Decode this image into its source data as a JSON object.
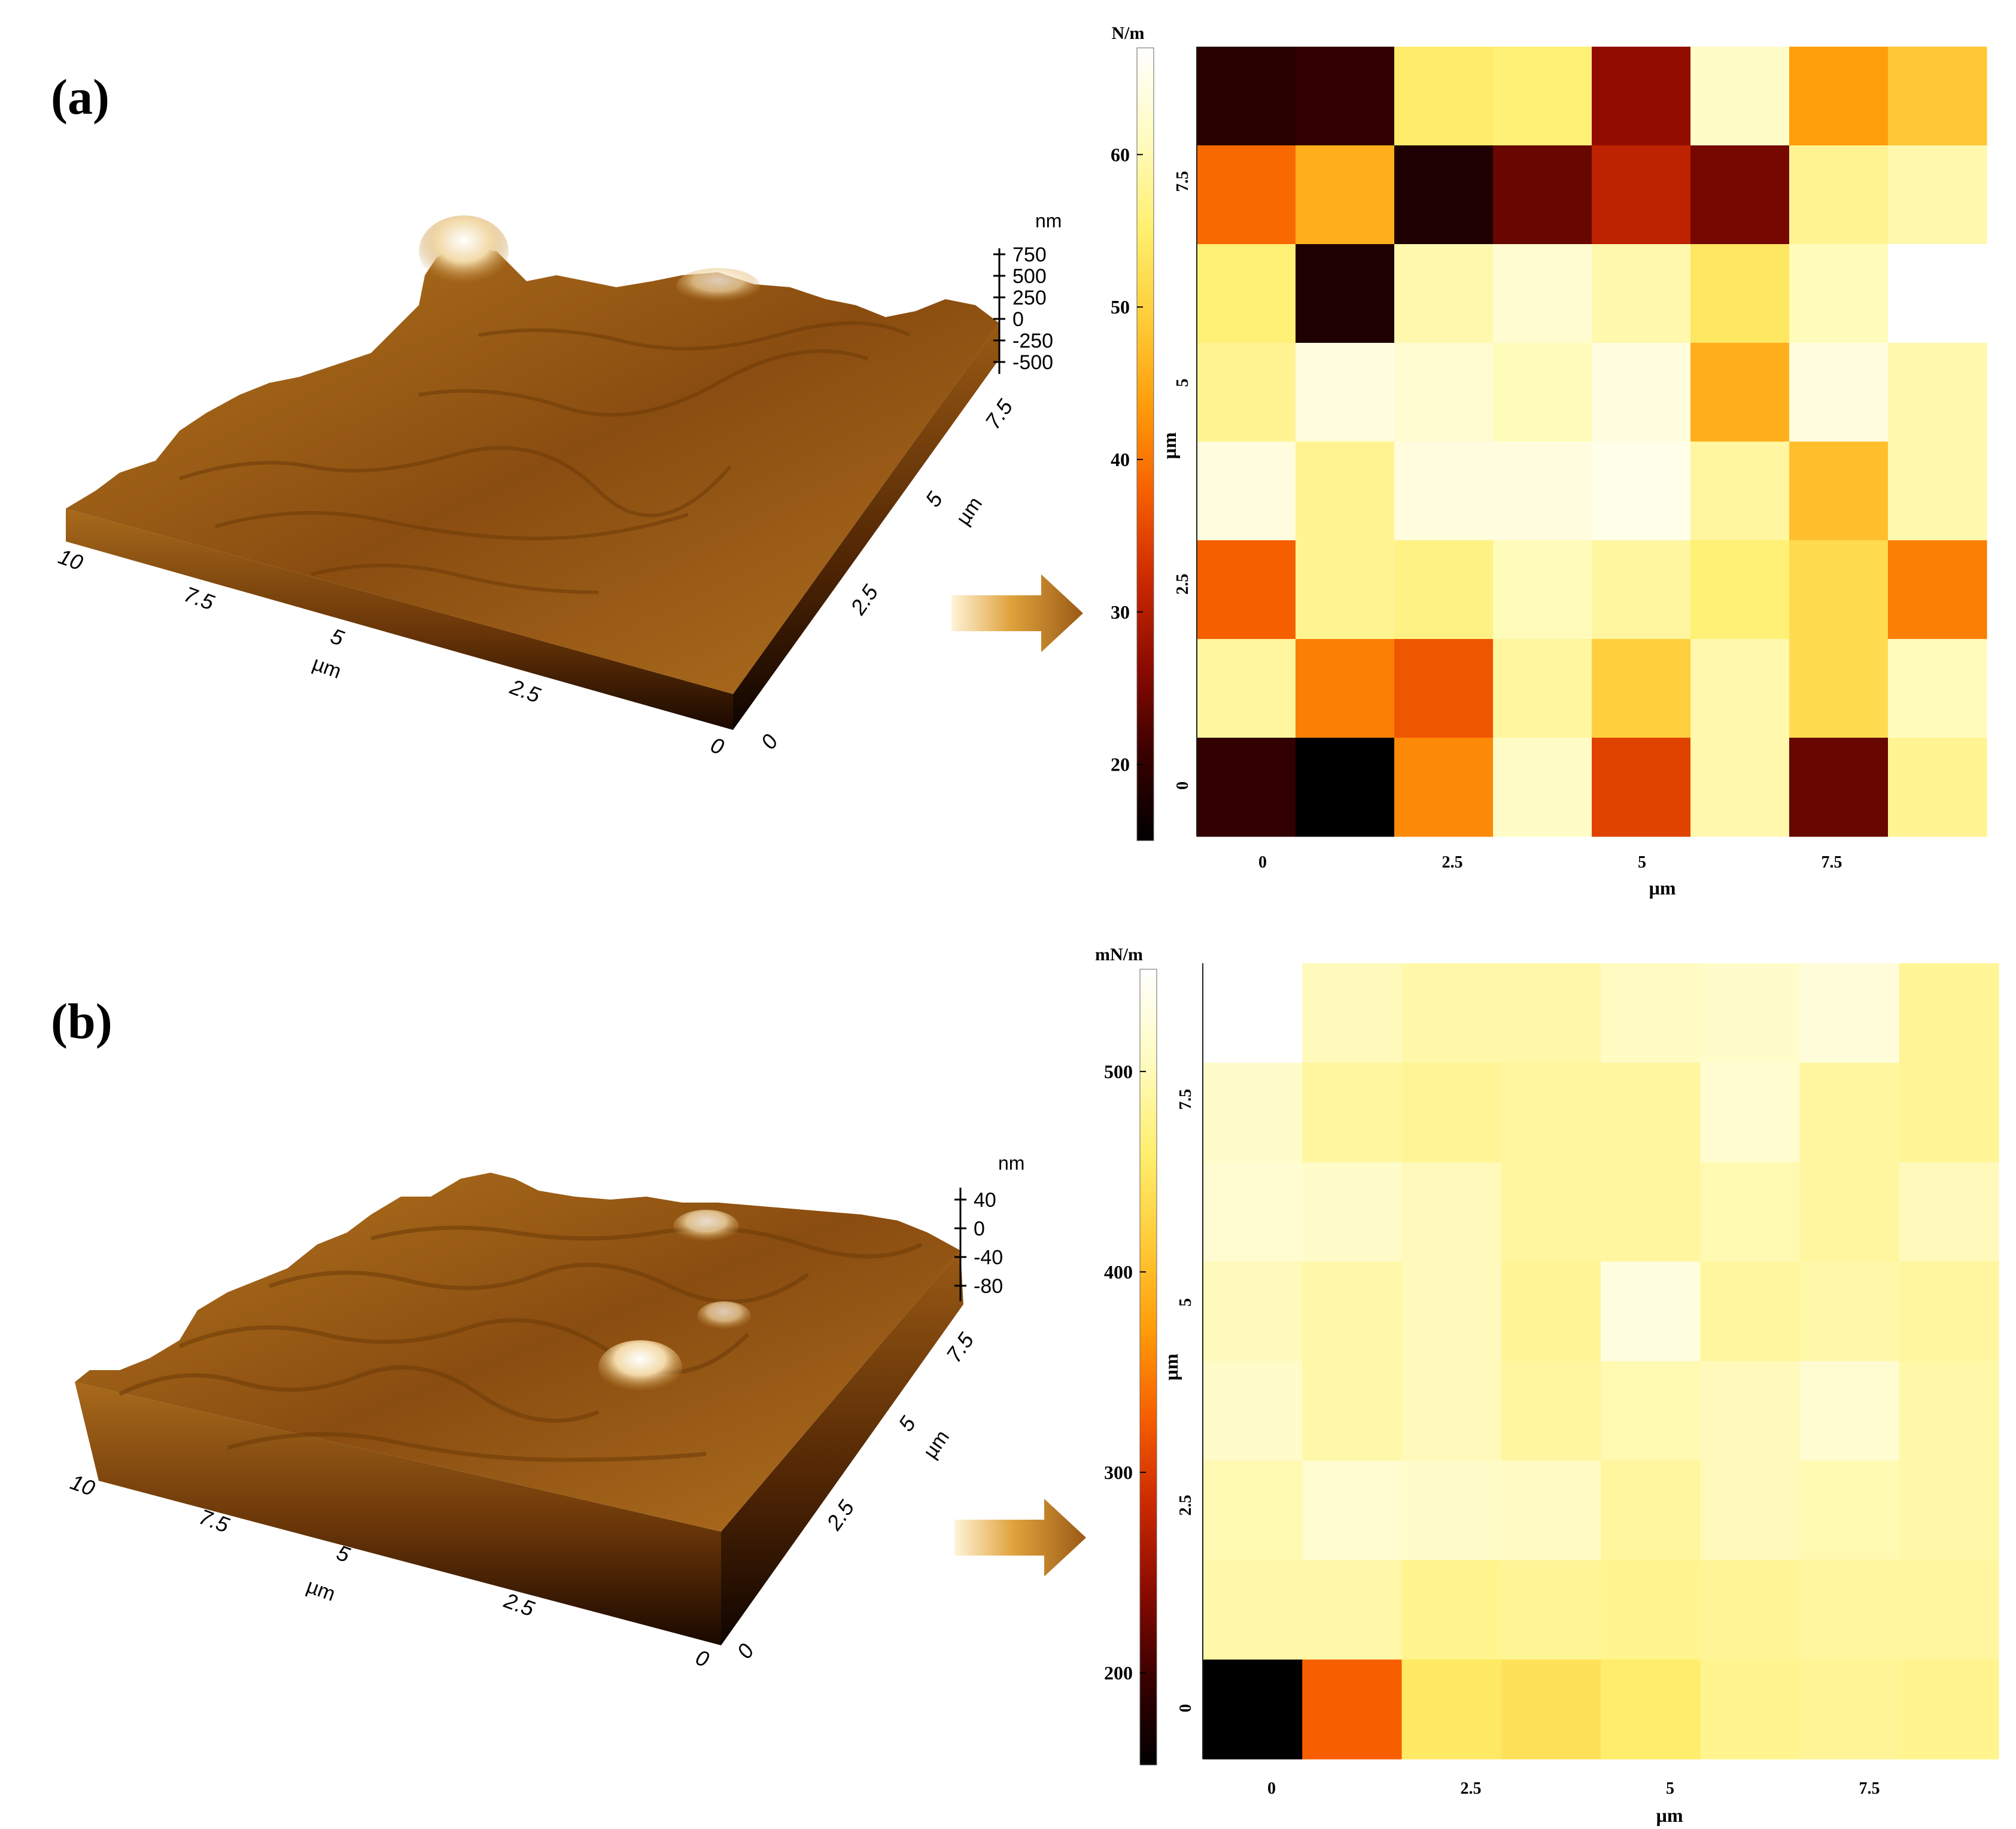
{
  "panels": [
    {
      "label": "(a)",
      "topo": {
        "z_unit": "nm",
        "z_ticks": [
          "750",
          "500",
          "250",
          "0",
          "-250",
          "-500"
        ],
        "axis1_ticks": [
          "10",
          "7.5",
          "5",
          "2.5",
          "0"
        ],
        "axis1_label": "µm",
        "axis2_ticks": [
          "0",
          "2.5",
          "5",
          "7.5"
        ],
        "axis2_label": "µm",
        "peak_level": 0.8
      },
      "chart_data": {
        "type": "heatmap",
        "colorbar_unit": "N/m",
        "colorbar_ticks": [
          20,
          30,
          40,
          50,
          60
        ],
        "colorbar_range": [
          15,
          67
        ],
        "colormap": [
          "#000000",
          "#3a0000",
          "#8c0b00",
          "#cc2a00",
          "#f76000",
          "#ff9d0a",
          "#ffcd3a",
          "#ffef6e",
          "#fffbbe",
          "#ffffff"
        ],
        "x_ticks": [
          "0",
          "2.5",
          "5",
          "7.5"
        ],
        "xlabel": "µm",
        "y_ticks": [
          "0",
          "2.5",
          "5",
          "7.5"
        ],
        "ylabel": "µm",
        "rows_top_to_bottom": [
          [
            19,
            20,
            55,
            56,
            27,
            62,
            44,
            49
          ],
          [
            39,
            46,
            18,
            24,
            31,
            25,
            58,
            60
          ],
          [
            56,
            18,
            60,
            63,
            60,
            54,
            61,
            67
          ],
          [
            58,
            64,
            63,
            61,
            64,
            46,
            64,
            60
          ],
          [
            64,
            58,
            64,
            64,
            65,
            59,
            48,
            60
          ],
          [
            38,
            58,
            57,
            61,
            59,
            56,
            52,
            41
          ],
          [
            59,
            41,
            37,
            59,
            50,
            60,
            52,
            61
          ],
          [
            20,
            15,
            42,
            62,
            35,
            60,
            24,
            58
          ]
        ]
      }
    },
    {
      "label": "(b)",
      "topo": {
        "z_unit": "nm",
        "z_ticks": [
          "40",
          "0",
          "-40",
          "-80"
        ],
        "axis1_ticks": [
          "10",
          "7.5",
          "5",
          "2.5",
          "0"
        ],
        "axis1_label": "µm",
        "axis2_ticks": [
          "0",
          "2.5",
          "5",
          "7.5"
        ],
        "axis2_label": "µm",
        "peak_level": 0.45
      },
      "chart_data": {
        "type": "heatmap",
        "colorbar_unit": "mN/m",
        "colorbar_ticks": [
          200,
          300,
          400,
          500
        ],
        "colorbar_range": [
          154,
          551
        ],
        "colormap": [
          "#000000",
          "#3a0000",
          "#8c0b00",
          "#cc2a00",
          "#f76000",
          "#ff9d0a",
          "#ffcd3a",
          "#ffef6e",
          "#fffbbe",
          "#ffffff"
        ],
        "x_ticks": [
          "0",
          "2.5",
          "5",
          "7.5"
        ],
        "xlabel": "µm",
        "y_ticks": [
          "0",
          "2.5",
          "5",
          "7.5"
        ],
        "ylabel": "µm",
        "rows_top_to_bottom": [
          [
            551,
            505,
            495,
            495,
            510,
            515,
            525,
            485
          ],
          [
            515,
            490,
            485,
            490,
            490,
            520,
            490,
            485
          ],
          [
            520,
            515,
            505,
            490,
            490,
            500,
            490,
            505
          ],
          [
            505,
            495,
            505,
            485,
            530,
            490,
            495,
            490
          ],
          [
            515,
            495,
            505,
            490,
            500,
            505,
            520,
            495
          ],
          [
            500,
            520,
            515,
            510,
            490,
            505,
            500,
            495
          ],
          [
            495,
            495,
            480,
            485,
            480,
            485,
            490,
            490
          ],
          [
            154,
            330,
            455,
            445,
            460,
            480,
            485,
            480
          ]
        ]
      }
    }
  ]
}
